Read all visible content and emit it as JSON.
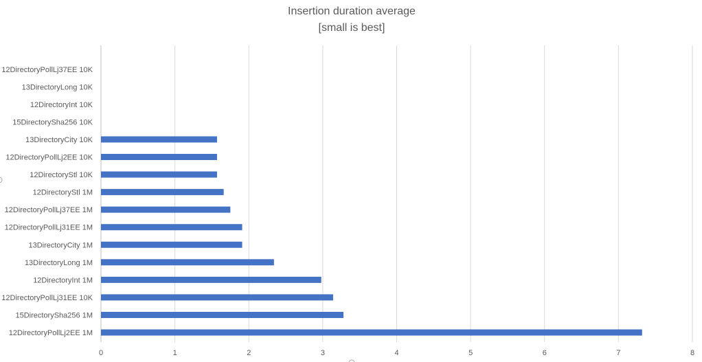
{
  "chart_data": {
    "type": "bar",
    "orientation": "horizontal",
    "title": "Insertion duration average",
    "subtitle": "[small is best]",
    "xlim": [
      0,
      8
    ],
    "x_ticks": [
      "0",
      "1",
      "2",
      "3",
      "4",
      "5",
      "6",
      "7",
      "8"
    ],
    "grid": true,
    "bar_color": "#4472C4",
    "categories": [
      "12DirectoryPollLj37EE 10K",
      "13DirectoryLong 10K",
      "12DirectoryInt 10K",
      "15DirectorySha256 10K",
      "13DirectoryCity 10K",
      "12DirectoryPollLj2EE 10K",
      "12DirectoryStl 10K",
      "12DirectoryStl 1M",
      "12DirectoryPollLj37EE 1M",
      "12DirectoryPollLj31EE 1M",
      "13DirectoryCity 1M",
      "13DirectoryLong 1M",
      "12DirectoryInt 1M",
      "12DirectoryPollLj31EE 10K",
      "15DirectorySha256 1M",
      "12DirectoryPollLj2EE 1M"
    ],
    "values": [
      0,
      0,
      0,
      0,
      1.57,
      1.57,
      1.57,
      1.66,
      1.75,
      1.91,
      1.91,
      2.34,
      2.98,
      3.14,
      3.28,
      7.32
    ]
  }
}
